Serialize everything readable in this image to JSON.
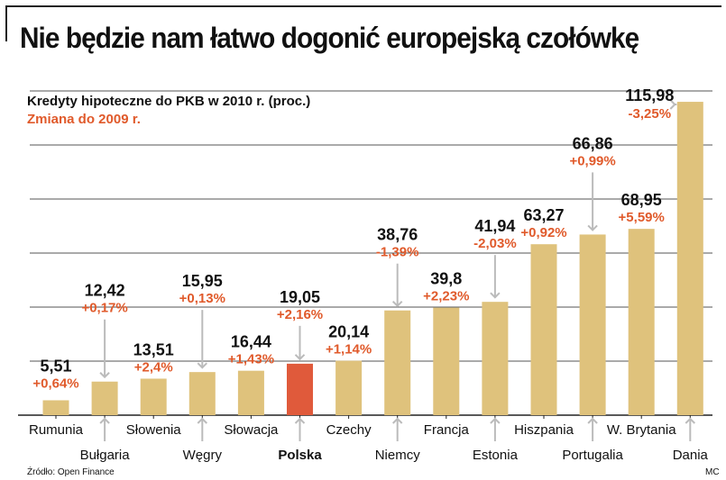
{
  "headline": "Nie będzie nam łatwo dogonić europejską czołówkę",
  "subtitle": "Kredyty hipoteczne do PKB w 2010 r. (proc.)",
  "subtitle_change": "Zmiana do 2009 r.",
  "source": "Źródło: Open Finance",
  "author": "MC",
  "colors": {
    "bar": "#dfc27c",
    "highlight": "#e05a3b",
    "change": "#e05a2b",
    "grid": "#555555",
    "arrow": "#bbbbbb"
  },
  "chart_data": {
    "type": "bar",
    "title": "Kredyty hipoteczne do PKB w 2010 r. (proc.)",
    "xlabel": "",
    "ylabel": "",
    "ylim": [
      0,
      120
    ],
    "gridlines": [
      20,
      40,
      60,
      80,
      100,
      120
    ],
    "highlight": "Polska",
    "categories": [
      "Rumunia",
      "Bułgaria",
      "Słowenia",
      "Węgry",
      "Słowacja",
      "Polska",
      "Czechy",
      "Niemcy",
      "Francja",
      "Estonia",
      "Hiszpania",
      "Portugalia",
      "W. Brytania",
      "Dania"
    ],
    "values": [
      5.51,
      12.42,
      13.51,
      15.95,
      16.44,
      19.05,
      20.14,
      38.76,
      39.8,
      41.94,
      63.27,
      66.86,
      68.95,
      115.98
    ],
    "value_labels": [
      "5,51",
      "12,42",
      "13,51",
      "15,95",
      "16,44",
      "19,05",
      "20,14",
      "38,76",
      "39,8",
      "41,94",
      "63,27",
      "66,86",
      "68,95",
      "115,98"
    ],
    "change_labels": [
      "+0,64%",
      "+0,17%",
      "+2,4%",
      "+0,13%",
      "+1,43%",
      "+2,16%",
      "+1,14%",
      "-1,39%",
      "+2,23%",
      "-2,03%",
      "+0,92%",
      "+0,99%",
      "+5,59%",
      "-3,25%"
    ]
  }
}
